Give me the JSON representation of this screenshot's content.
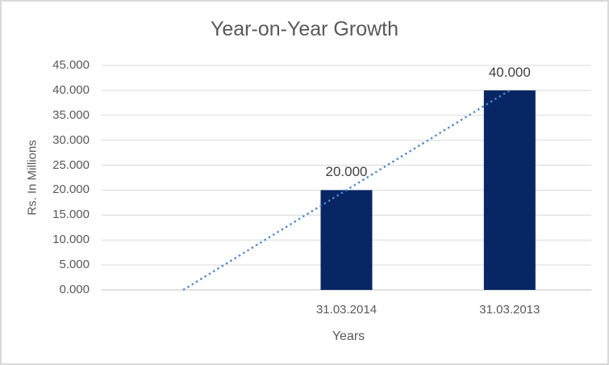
{
  "window": {
    "background_color": "#ffffff",
    "border_color": "#d9d9d9"
  },
  "chart_data": {
    "type": "bar",
    "title": "Year-on-Year Growth",
    "xlabel": "Years",
    "ylabel": "Rs. In Millions",
    "categories": [
      "31.03.2014",
      "31.03.2013"
    ],
    "values": [
      20.0,
      40.0
    ],
    "data_labels": [
      "20.000",
      "40.000"
    ],
    "ylim": [
      0,
      45
    ],
    "ytick_step": 5,
    "ytick_labels": [
      "0.000",
      "5.000",
      "10.000",
      "15.000",
      "20.000",
      "25.000",
      "30.000",
      "35.000",
      "40.000",
      "45.000"
    ],
    "grid": true,
    "legend": false,
    "colors": {
      "bar": "#082664",
      "trendline": "#4f88c9",
      "gridline": "#d9d9d9",
      "axis_line": "#c0c0c0",
      "title_text": "#595959",
      "tick_text": "#595959",
      "data_label_text": "#404040"
    },
    "trendline": {
      "style": "dotted",
      "from": {
        "slot": 0,
        "value": 0
      },
      "to": {
        "slot": 2,
        "value": 40
      }
    },
    "layout": {
      "x_slots": 3,
      "bar_slots": [
        1,
        2
      ],
      "legend_position": "none",
      "note_first_slot_blank": true
    }
  }
}
